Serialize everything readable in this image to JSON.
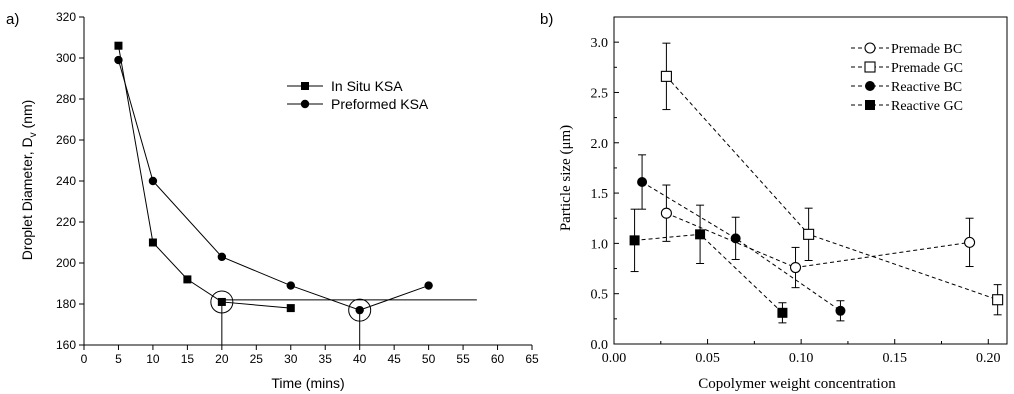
{
  "chart_data": [
    {
      "panel_label": "a)",
      "type": "line",
      "xlabel": "Time (mins)",
      "ylabel": "Droplet Diameter, D",
      "ylabel_sub": "v",
      "ylabel_unit": " (nm)",
      "xlim": [
        0,
        65
      ],
      "ylim": [
        160,
        320
      ],
      "xticks": [
        0,
        5,
        10,
        15,
        20,
        25,
        30,
        35,
        40,
        45,
        50,
        55,
        60,
        65
      ],
      "yticks": [
        160,
        180,
        200,
        220,
        240,
        260,
        280,
        300,
        320
      ],
      "grid": false,
      "legend_position": "top-right",
      "series": [
        {
          "name": "In Situ KSA",
          "marker": "square",
          "x": [
            5,
            10,
            15,
            20,
            30
          ],
          "y": [
            306,
            210,
            192,
            181,
            178
          ]
        },
        {
          "name": "Preformed KSA",
          "marker": "circle",
          "x": [
            5,
            10,
            20,
            30,
            40,
            50
          ],
          "y": [
            299,
            240,
            203,
            189,
            177,
            189
          ]
        }
      ],
      "annotations": {
        "reference_line_y": 182,
        "reference_line_x": [
          20,
          57
        ],
        "circled_points": [
          {
            "x": 20,
            "y": 181
          },
          {
            "x": 40,
            "y": 177
          }
        ]
      }
    },
    {
      "panel_label": "b)",
      "type": "scatter",
      "xlabel": "Copolymer weight concentration",
      "ylabel": "Particle size (μm)",
      "xlim": [
        0.0,
        0.21
      ],
      "ylim": [
        0.0,
        3.25
      ],
      "xticks": [
        "0.00",
        "0.05",
        "0.10",
        "0.15",
        "0.20"
      ],
      "yticks": [
        "0.0",
        "0.5",
        "1.0",
        "1.5",
        "2.0",
        "2.5",
        "3.0"
      ],
      "grid": false,
      "legend_position": "top-right",
      "series": [
        {
          "name": "Premade BC",
          "marker": "open-circle",
          "x": [
            0.028,
            0.097,
            0.19
          ],
          "y": [
            1.3,
            0.76,
            1.01
          ],
          "err": [
            0.28,
            0.2,
            0.24
          ]
        },
        {
          "name": "Premade GC",
          "marker": "open-square",
          "x": [
            0.028,
            0.104,
            0.205
          ],
          "y": [
            2.66,
            1.09,
            0.44
          ],
          "err": [
            0.33,
            0.26,
            0.15
          ]
        },
        {
          "name": "Reactive BC",
          "marker": "filled-circle",
          "x": [
            0.015,
            0.065,
            0.121
          ],
          "y": [
            1.61,
            1.05,
            0.33
          ],
          "err": [
            0.27,
            0.21,
            0.1
          ]
        },
        {
          "name": "Reactive GC",
          "marker": "filled-square",
          "x": [
            0.011,
            0.046,
            0.09
          ],
          "y": [
            1.03,
            1.09,
            0.31
          ],
          "err": [
            0.31,
            0.29,
            0.1
          ]
        }
      ]
    }
  ]
}
